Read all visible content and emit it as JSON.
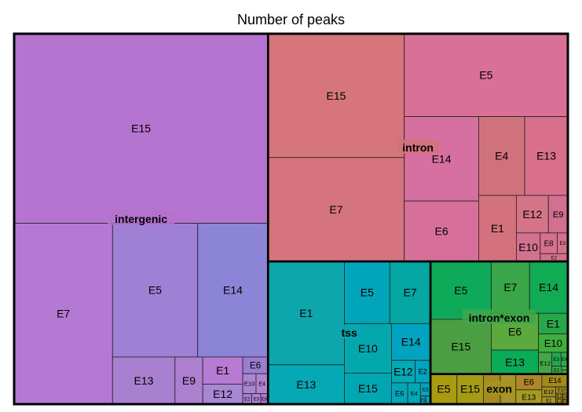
{
  "chart_data": {
    "type": "treemap",
    "title": "Number of peaks",
    "groups": [
      {
        "name": "intergenic",
        "color": "#b472cc",
        "children": [
          {
            "label": "E15",
            "value": 76320,
            "color": "#b474cf"
          },
          {
            "label": "E7",
            "value": 28230,
            "color": "#b47ad3"
          },
          {
            "label": "E14",
            "value": 14920,
            "color": "#8c84d6"
          },
          {
            "label": "E5",
            "value": 18070,
            "color": "#9e80d4"
          },
          {
            "label": "E13",
            "value": 4670,
            "color": "#a880cf"
          },
          {
            "label": "E9",
            "value": 2080,
            "color": "#ad7fcf"
          },
          {
            "label": "E1",
            "value": 1720,
            "color": "#b87bd4"
          },
          {
            "label": "E12",
            "value": 1270,
            "color": "#a986d4"
          },
          {
            "label": "E6",
            "value": 670,
            "color": "#9a7ed1"
          },
          {
            "label": "E10",
            "value": 420,
            "color": "#ac84d4"
          },
          {
            "label": "E4",
            "value": 380,
            "color": "#b183d3"
          },
          {
            "label": "E2",
            "value": 150,
            "color": "#a77fcf"
          },
          {
            "label": "E3",
            "value": 150,
            "color": "#b17fd2"
          },
          {
            "label": "E8",
            "value": 120,
            "color": "#a97bd0"
          }
        ]
      },
      {
        "name": "intron",
        "color": "#d4727a",
        "children": [
          {
            "label": "E15",
            "value": 26750,
            "color": "#d6757c"
          },
          {
            "label": "E7",
            "value": 22450,
            "color": "#d5747d"
          },
          {
            "label": "E5",
            "value": 21500,
            "color": "#d97097"
          },
          {
            "label": "E14",
            "value": 9960,
            "color": "#d670a0"
          },
          {
            "label": "E6",
            "value": 7130,
            "color": "#d6709b"
          },
          {
            "label": "E4",
            "value": 5760,
            "color": "#d0727c"
          },
          {
            "label": "E13",
            "value": 5390,
            "color": "#d8708c"
          },
          {
            "label": "E1",
            "value": 3950,
            "color": "#d3727c"
          },
          {
            "label": "E12",
            "value": 1910,
            "color": "#d47486"
          },
          {
            "label": "E9",
            "value": 1160,
            "color": "#d2708f"
          },
          {
            "label": "E10",
            "value": 1080,
            "color": "#d37290"
          },
          {
            "label": "E8",
            "value": 560,
            "color": "#d6708d"
          },
          {
            "label": "E3",
            "value": 350,
            "color": "#d5728b"
          },
          {
            "label": "E2",
            "value": 340,
            "color": "#d47189"
          }
        ]
      },
      {
        "name": "tss",
        "color": "#0aa6b0",
        "children": [
          {
            "label": "E1",
            "value": 12500,
            "color": "#0ea6ad"
          },
          {
            "label": "E13",
            "value": 4770,
            "color": "#05a8b5"
          },
          {
            "label": "E5",
            "value": 4480,
            "color": "#00a5bb"
          },
          {
            "label": "E7",
            "value": 4010,
            "color": "#04a7a3"
          },
          {
            "label": "E10",
            "value": 3700,
            "color": "#03a8ac"
          },
          {
            "label": "E15",
            "value": 2320,
            "color": "#00a6b2"
          },
          {
            "label": "E14",
            "value": 2280,
            "color": "#00a3c0"
          },
          {
            "label": "E12",
            "value": 840,
            "color": "#00a9b4"
          },
          {
            "label": "E2",
            "value": 550,
            "color": "#00a4bf"
          },
          {
            "label": "E6",
            "value": 550,
            "color": "#00a7ba"
          },
          {
            "label": "E4",
            "value": 430,
            "color": "#01a6b7"
          },
          {
            "label": "E3",
            "value": 210,
            "color": "#00a2bc"
          },
          {
            "label": "E9",
            "value": 70,
            "color": "#00a5b7"
          },
          {
            "label": "E8",
            "value": 60,
            "color": "#00a5b7"
          }
        ]
      },
      {
        "name": "intron*exon",
        "color": "#3ea84a",
        "children": [
          {
            "label": "E5",
            "value": 5580,
            "color": "#0fa95a"
          },
          {
            "label": "E15",
            "value": 5280,
            "color": "#4c9e42"
          },
          {
            "label": "E7",
            "value": 3150,
            "color": "#3aa64a"
          },
          {
            "label": "E14",
            "value": 3150,
            "color": "#10ab54"
          },
          {
            "label": "E6",
            "value": 2750,
            "color": "#5caa3d"
          },
          {
            "label": "E13",
            "value": 1800,
            "color": "#0bac58"
          },
          {
            "label": "E1",
            "value": 960,
            "color": "#27a74a"
          },
          {
            "label": "E10",
            "value": 860,
            "color": "#3fae3c"
          },
          {
            "label": "E12",
            "value": 460,
            "color": "#43a746"
          },
          {
            "label": "E3",
            "value": 200,
            "color": "#1ea94e"
          },
          {
            "label": "E4",
            "value": 150,
            "color": "#2fac4a"
          },
          {
            "label": "E2",
            "value": 120,
            "color": "#3bab45"
          },
          {
            "label": "E8",
            "value": 40,
            "color": "#3fa946"
          },
          {
            "label": "E9",
            "value": 40,
            "color": "#39a647"
          }
        ]
      },
      {
        "name": "exon",
        "color": "#a6951e",
        "children": [
          {
            "label": "E5",
            "value": 1260,
            "color": "#a89b0f"
          },
          {
            "label": "E15",
            "value": 1260,
            "color": "#a69b14"
          },
          {
            "label": "E7",
            "value": 810,
            "color": "#a8891f"
          },
          {
            "label": "E4",
            "value": 740,
            "color": "#a49628"
          },
          {
            "label": "E6",
            "value": 650,
            "color": "#b0862b"
          },
          {
            "label": "E13",
            "value": 590,
            "color": "#a79a20"
          },
          {
            "label": "E14",
            "value": 530,
            "color": "#a08a1a"
          },
          {
            "label": "E12",
            "value": 220,
            "color": "#a58b22"
          },
          {
            "label": "E1",
            "value": 160,
            "color": "#a8962c"
          },
          {
            "label": "E10",
            "value": 120,
            "color": "#a79422"
          },
          {
            "label": "E2",
            "value": 60,
            "color": "#a48e20"
          },
          {
            "label": "E3",
            "value": 60,
            "color": "#ab8f23"
          },
          {
            "label": "E8",
            "value": 50,
            "color": "#a9921f"
          },
          {
            "label": "E9",
            "value": 40,
            "color": "#a7901e"
          }
        ]
      }
    ]
  }
}
